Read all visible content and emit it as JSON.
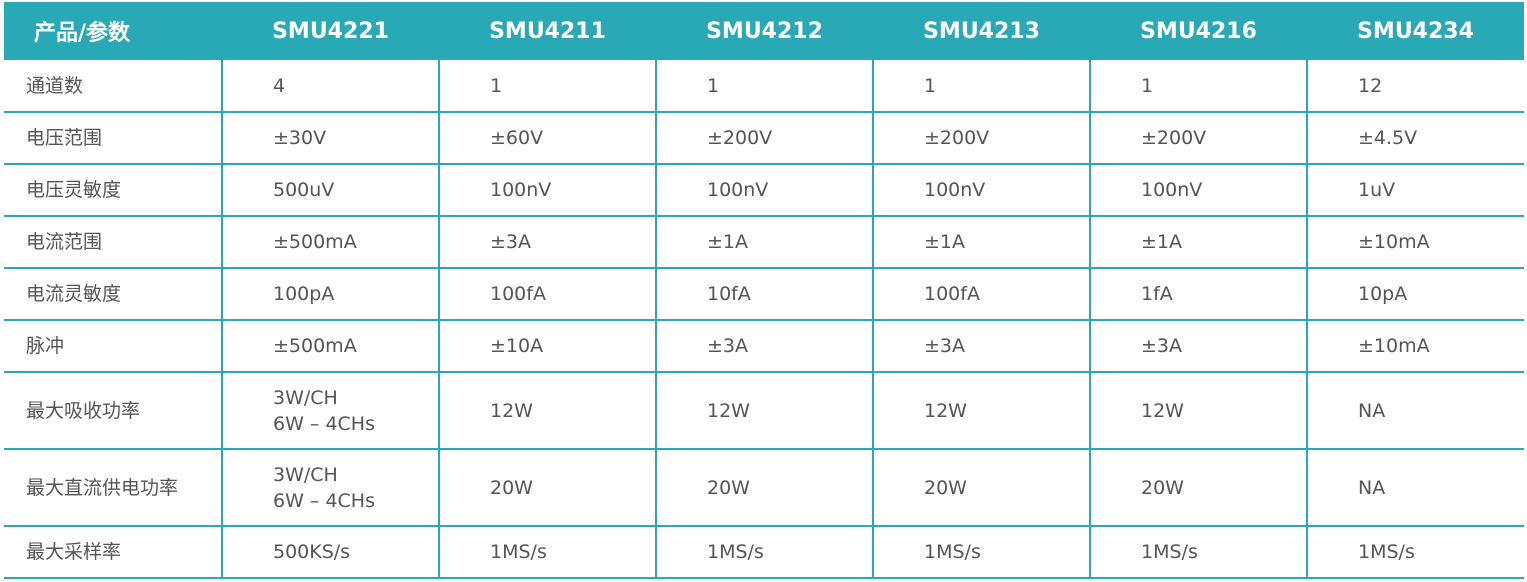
{
  "table": {
    "header": [
      "产品/参数",
      "SMU4221",
      "SMU4211",
      "SMU4212",
      "SMU4213",
      "SMU4216",
      "SMU4234"
    ],
    "rows": [
      {
        "label": "通道数",
        "values": [
          [
            "4"
          ],
          [
            "1"
          ],
          [
            "1"
          ],
          [
            "1"
          ],
          [
            "1"
          ],
          [
            "12"
          ]
        ]
      },
      {
        "label": "电压范围",
        "values": [
          [
            "±30V"
          ],
          [
            "±60V"
          ],
          [
            "±200V"
          ],
          [
            "±200V"
          ],
          [
            "±200V"
          ],
          [
            "±4.5V"
          ]
        ]
      },
      {
        "label": "电压灵敏度",
        "values": [
          [
            "500uV"
          ],
          [
            "100nV"
          ],
          [
            "100nV"
          ],
          [
            "100nV"
          ],
          [
            "100nV"
          ],
          [
            "1uV"
          ]
        ]
      },
      {
        "label": "电流范围",
        "values": [
          [
            "±500mA"
          ],
          [
            "±3A"
          ],
          [
            "±1A"
          ],
          [
            "±1A"
          ],
          [
            "±1A"
          ],
          [
            "±10mA"
          ]
        ]
      },
      {
        "label": "电流灵敏度",
        "values": [
          [
            "100pA"
          ],
          [
            "100fA"
          ],
          [
            "10fA"
          ],
          [
            "100fA"
          ],
          [
            "1fA"
          ],
          [
            "10pA"
          ]
        ]
      },
      {
        "label": "脉冲",
        "values": [
          [
            "±500mA"
          ],
          [
            "±10A"
          ],
          [
            "±3A"
          ],
          [
            "±3A"
          ],
          [
            "±3A"
          ],
          [
            "±10mA"
          ]
        ]
      },
      {
        "label": "最大吸收功率",
        "values": [
          [
            "3W/CH",
            "6W – 4CHs"
          ],
          [
            "12W"
          ],
          [
            "12W"
          ],
          [
            "12W"
          ],
          [
            "12W"
          ],
          [
            "NA"
          ]
        ]
      },
      {
        "label": "最大直流供电功率",
        "values": [
          [
            "3W/CH",
            "6W – 4CHs"
          ],
          [
            "20W"
          ],
          [
            "20W"
          ],
          [
            "20W"
          ],
          [
            "20W"
          ],
          [
            "NA"
          ]
        ]
      },
      {
        "label": "最大采样率",
        "values": [
          [
            "500KS/s"
          ],
          [
            "1MS/s"
          ],
          [
            "1MS/s"
          ],
          [
            "1MS/s"
          ],
          [
            "1MS/s"
          ],
          [
            "1MS/s"
          ]
        ]
      }
    ],
    "colors": {
      "header_bg": "#29a8b6",
      "border": "#29a8b6",
      "text": "#555555"
    }
  }
}
